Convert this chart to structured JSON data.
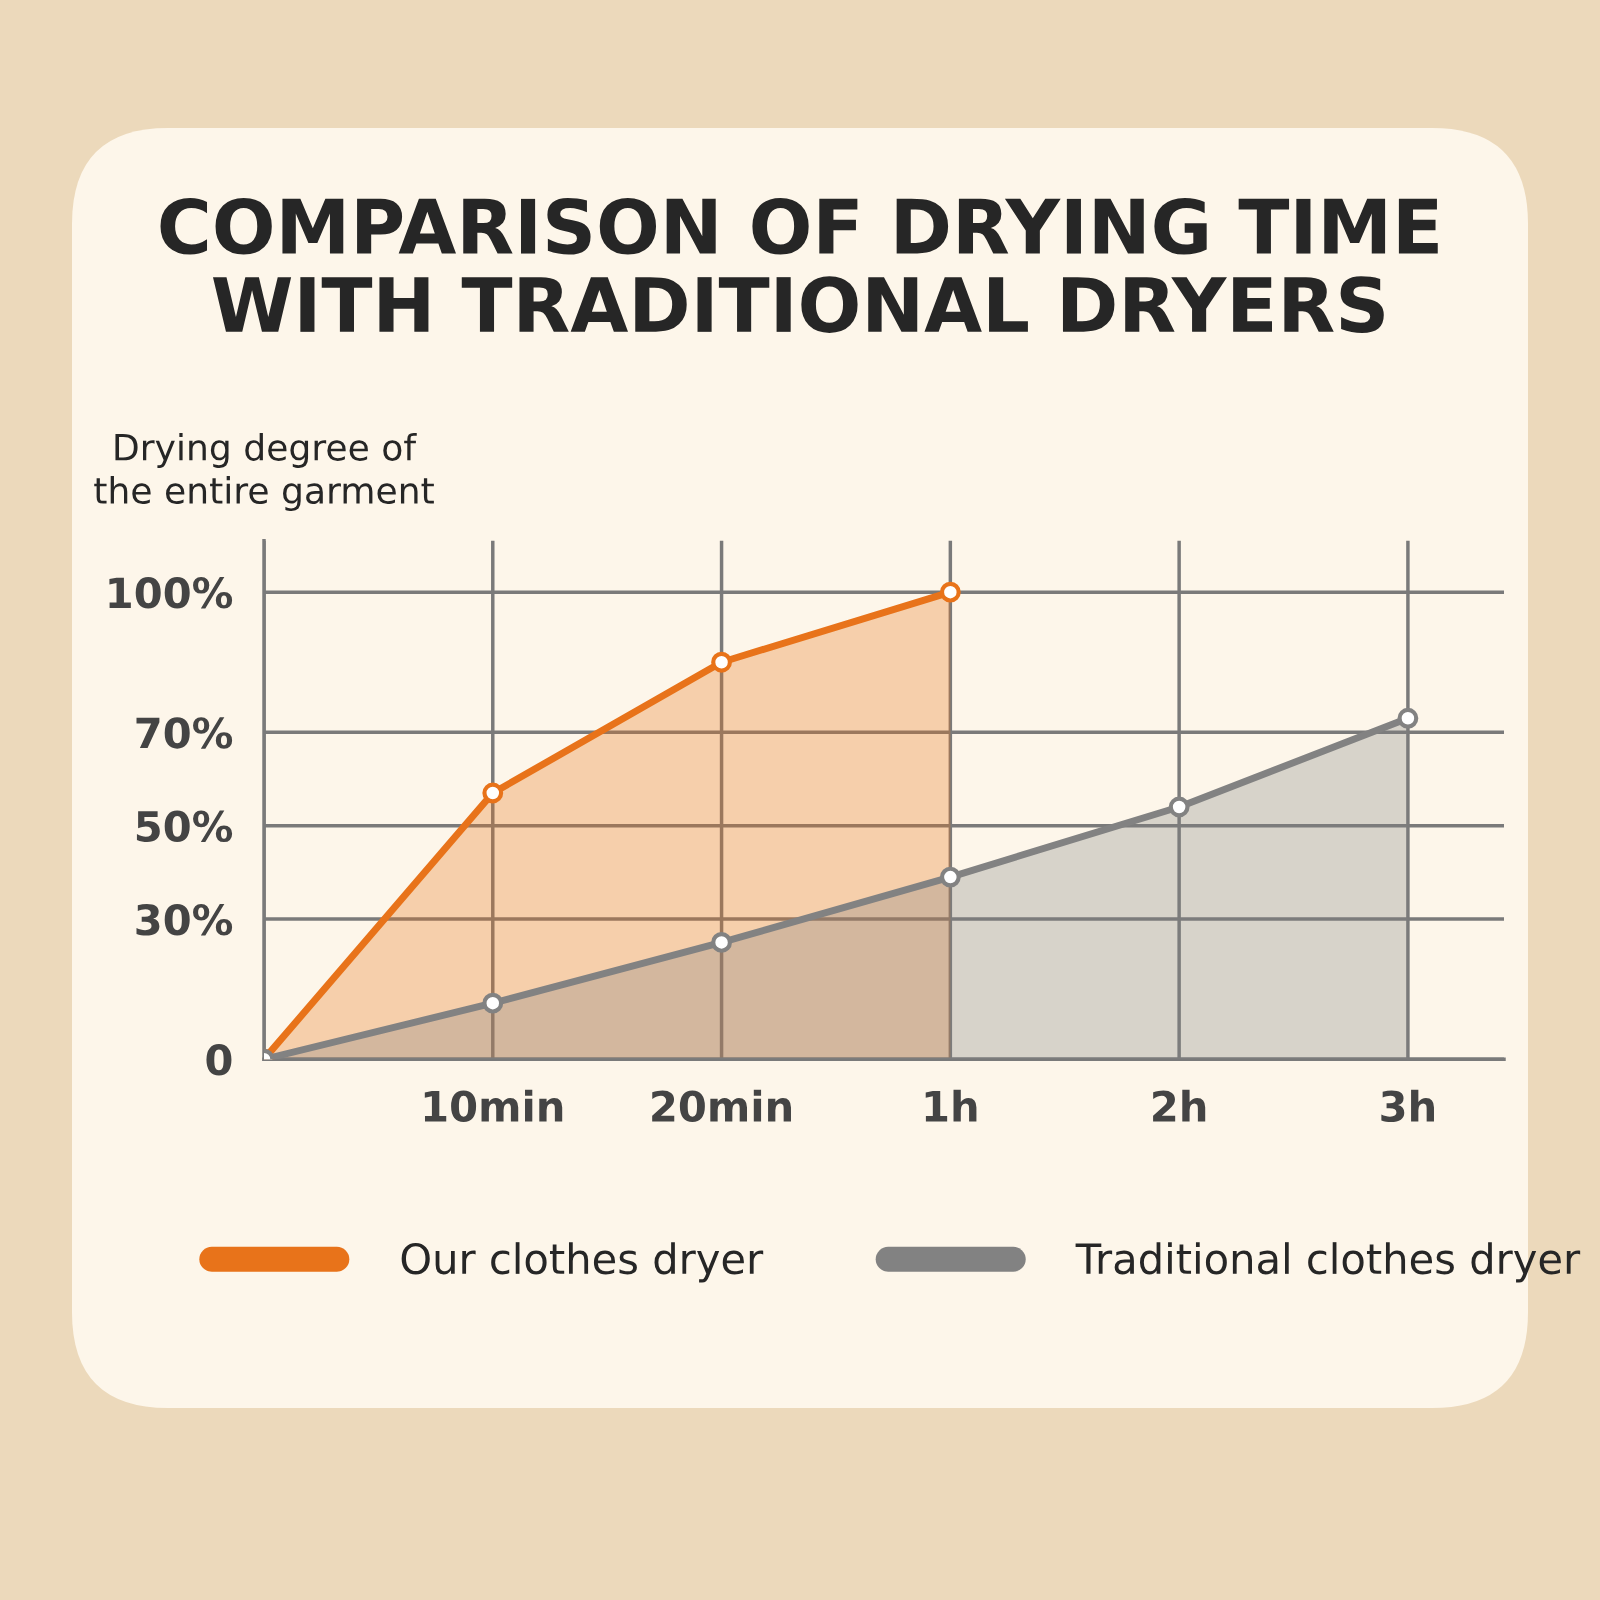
{
  "chart_data": {
    "type": "area",
    "title": "COMPARISON OF DRYING TIME\nWITH TRADITIONAL DRYERS",
    "ylabel": "Drying degree of\nthe entire garment",
    "categories": [
      null,
      "10min",
      "20min",
      "1h",
      "2h",
      "3h"
    ],
    "ylim": [
      0,
      111
    ],
    "yticks": [
      {
        "value": 0,
        "label": "0"
      },
      {
        "value": 30,
        "label": "30%"
      },
      {
        "value": 50,
        "label": "50%"
      },
      {
        "value": 70,
        "label": "70%"
      },
      {
        "value": 100,
        "label": "100%"
      }
    ],
    "grid": true,
    "legend": "bottom",
    "marker": "circle",
    "series": [
      {
        "name": "Our clothes dryer",
        "color": "#e8731a",
        "values": [
          0,
          57,
          85,
          100,
          null,
          null
        ]
      },
      {
        "name": "Traditional clothes dryer",
        "color": "#828282",
        "values": [
          0,
          12,
          25,
          39,
          54,
          73
        ]
      }
    ]
  }
}
